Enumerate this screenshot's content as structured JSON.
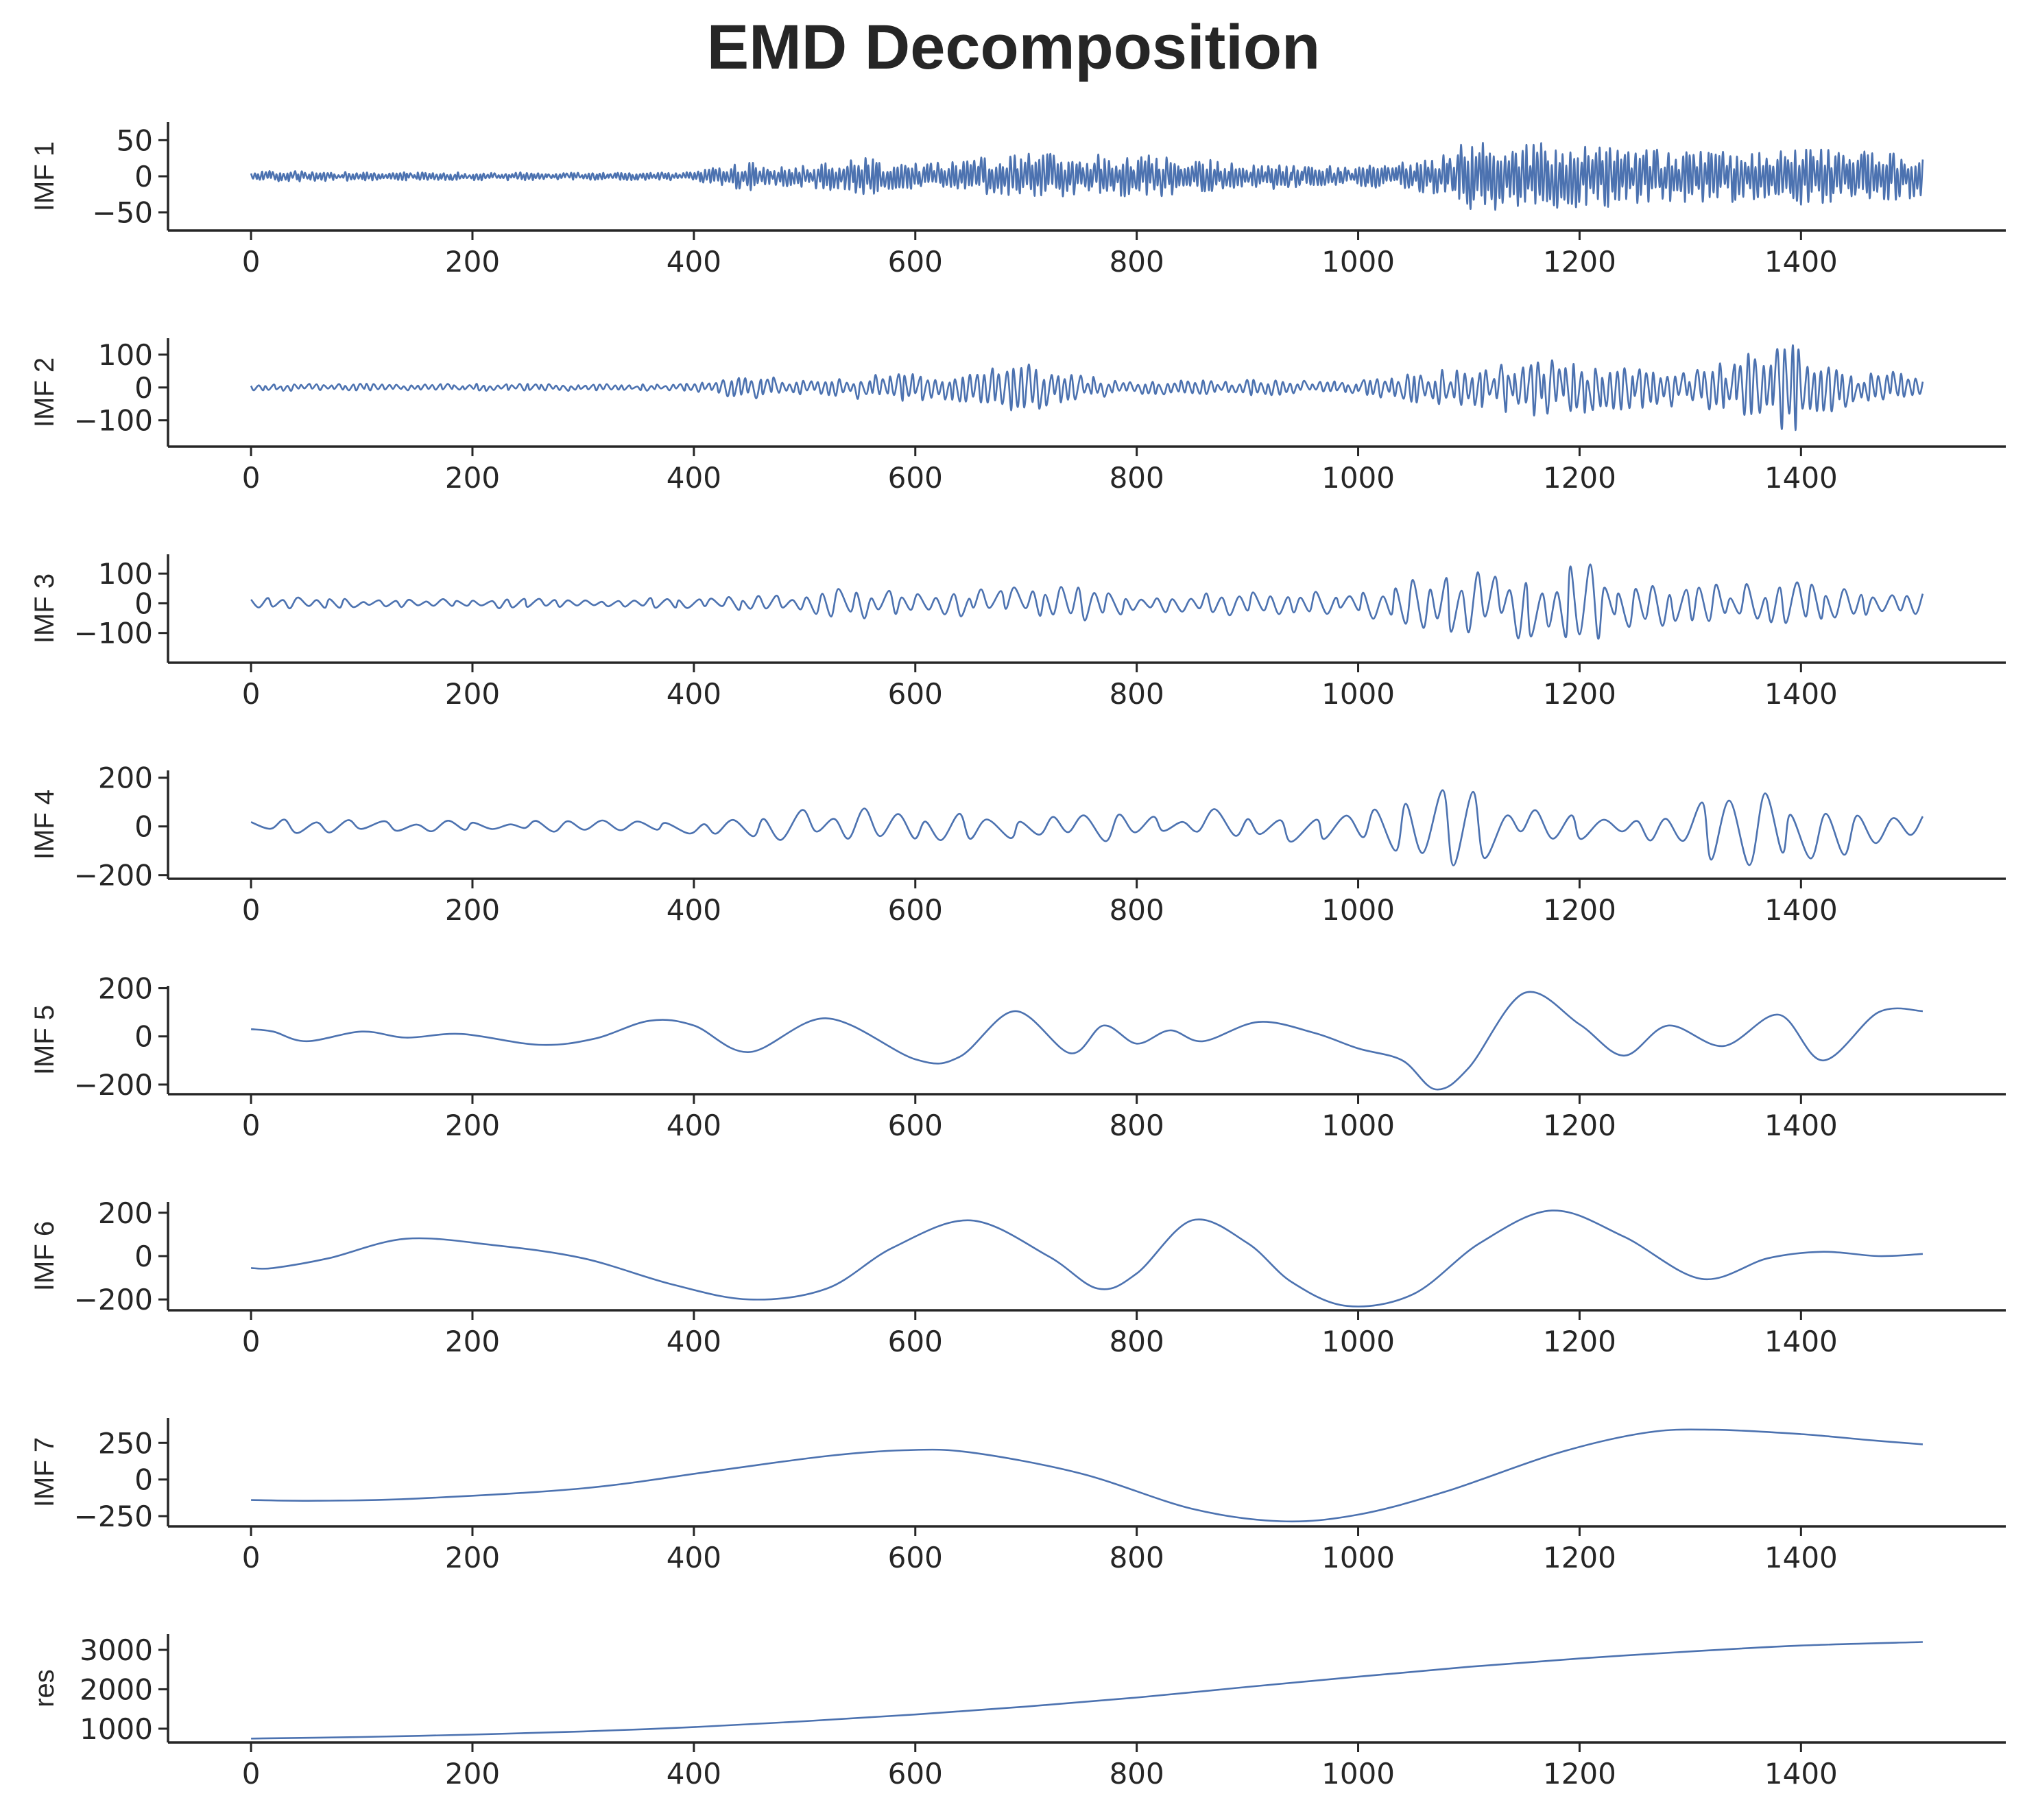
{
  "title": "EMD Decomposition",
  "colors": {
    "line": "#4c72b0",
    "axis": "#262626",
    "background": "#ffffff"
  },
  "chart_data": [
    {
      "type": "line",
      "ylabel": "IMF 1",
      "xlim": [
        -75,
        1585
      ],
      "ylim": [
        -75,
        75
      ],
      "xticks": [
        0,
        200,
        400,
        600,
        800,
        1000,
        1200,
        1400
      ],
      "yticks": [
        50,
        0,
        -50
      ],
      "ytick_labels": [
        "50",
        "0",
        "−50"
      ],
      "series": [
        {
          "x_start": 0,
          "x_end": 1510,
          "kind": "oscillatory",
          "cycles": 460,
          "envelope": [
            [
              0,
              8
            ],
            [
              100,
              6
            ],
            [
              200,
              6
            ],
            [
              300,
              5
            ],
            [
              400,
              6
            ],
            [
              450,
              22
            ],
            [
              470,
              12
            ],
            [
              560,
              26
            ],
            [
              600,
              18
            ],
            [
              700,
              32
            ],
            [
              800,
              30
            ],
            [
              900,
              20
            ],
            [
              1000,
              14
            ],
            [
              1050,
              22
            ],
            [
              1100,
              48
            ],
            [
              1200,
              45
            ],
            [
              1300,
              35
            ],
            [
              1400,
              42
            ],
            [
              1510,
              30
            ]
          ]
        }
      ]
    },
    {
      "type": "line",
      "ylabel": "IMF 2",
      "xlim": [
        -75,
        1585
      ],
      "ylim": [
        -180,
        150
      ],
      "xticks": [
        0,
        200,
        400,
        600,
        800,
        1000,
        1200,
        1400
      ],
      "yticks": [
        100,
        0,
        -100
      ],
      "ytick_labels": [
        "100",
        "0",
        "−100"
      ],
      "series": [
        {
          "x_start": 0,
          "x_end": 1510,
          "kind": "oscillatory",
          "cycles": 230,
          "envelope": [
            [
              0,
              10
            ],
            [
              100,
              12
            ],
            [
              200,
              12
            ],
            [
              300,
              10
            ],
            [
              400,
              12
            ],
            [
              450,
              40
            ],
            [
              500,
              20
            ],
            [
              550,
              40
            ],
            [
              650,
              45
            ],
            [
              700,
              80
            ],
            [
              750,
              40
            ],
            [
              800,
              20
            ],
            [
              900,
              25
            ],
            [
              1000,
              20
            ],
            [
              1050,
              50
            ],
            [
              1100,
              60
            ],
            [
              1150,
              90
            ],
            [
              1200,
              80
            ],
            [
              1300,
              55
            ],
            [
              1395,
              150
            ],
            [
              1450,
              45
            ],
            [
              1510,
              55
            ]
          ]
        }
      ]
    },
    {
      "type": "line",
      "ylabel": "IMF 3",
      "xlim": [
        -75,
        1585
      ],
      "ylim": [
        -200,
        165
      ],
      "xticks": [
        0,
        200,
        400,
        600,
        800,
        1000,
        1200,
        1400
      ],
      "yticks": [
        100,
        0,
        -100
      ],
      "ytick_labels": [
        "100",
        "0",
        "−100"
      ],
      "series": [
        {
          "x_start": 0,
          "x_end": 1510,
          "kind": "oscillatory",
          "cycles": 105,
          "envelope": [
            [
              0,
              25
            ],
            [
              100,
              15
            ],
            [
              200,
              18
            ],
            [
              300,
              15
            ],
            [
              400,
              20
            ],
            [
              500,
              40
            ],
            [
              550,
              65
            ],
            [
              600,
              35
            ],
            [
              700,
              60
            ],
            [
              750,
              70
            ],
            [
              800,
              25
            ],
            [
              900,
              45
            ],
            [
              1000,
              40
            ],
            [
              1050,
              90
            ],
            [
              1150,
              120
            ],
            [
              1200,
              140
            ],
            [
              1300,
              60
            ],
            [
              1400,
              75
            ],
            [
              1510,
              35
            ]
          ]
        }
      ]
    },
    {
      "type": "line",
      "ylabel": "IMF 4",
      "xlim": [
        -75,
        1585
      ],
      "ylim": [
        -215,
        230
      ],
      "xticks": [
        0,
        200,
        400,
        600,
        800,
        1000,
        1200,
        1400
      ],
      "yticks": [
        200,
        0,
        -200
      ],
      "ytick_labels": [
        "200",
        "0",
        "−200"
      ],
      "series": [
        {
          "x_start": 0,
          "x_end": 1510,
          "kind": "oscillatory",
          "cycles": 52,
          "envelope": [
            [
              0,
              35
            ],
            [
              100,
              25
            ],
            [
              200,
              25
            ],
            [
              300,
              25
            ],
            [
              400,
              30
            ],
            [
              450,
              45
            ],
            [
              550,
              100
            ],
            [
              650,
              55
            ],
            [
              750,
              70
            ],
            [
              800,
              50
            ],
            [
              900,
              80
            ],
            [
              1000,
              50
            ],
            [
              1040,
              120
            ],
            [
              1080,
              200
            ],
            [
              1150,
              70
            ],
            [
              1250,
              55
            ],
            [
              1300,
              120
            ],
            [
              1350,
              200
            ],
            [
              1400,
              180
            ],
            [
              1510,
              100
            ]
          ]
        }
      ]
    },
    {
      "type": "line",
      "ylabel": "IMF 5",
      "xlim": [
        -75,
        1585
      ],
      "ylim": [
        -240,
        210
      ],
      "xticks": [
        0,
        200,
        400,
        600,
        800,
        1000,
        1200,
        1400
      ],
      "yticks": [
        200,
        0,
        -200
      ],
      "ytick_labels": [
        "200",
        "0",
        "−200"
      ],
      "series": [
        {
          "name": "",
          "x": [
            0,
            20,
            50,
            100,
            140,
            190,
            260,
            310,
            360,
            400,
            450,
            520,
            600,
            640,
            690,
            740,
            770,
            800,
            830,
            860,
            910,
            960,
            1000,
            1040,
            1070,
            1100,
            1150,
            1200,
            1240,
            1280,
            1330,
            1380,
            1420,
            1470,
            1510
          ],
          "y": [
            30,
            20,
            -20,
            20,
            -5,
            10,
            -35,
            -10,
            65,
            45,
            -65,
            75,
            -95,
            -85,
            105,
            -70,
            45,
            -30,
            25,
            -20,
            60,
            15,
            -50,
            -100,
            -220,
            -130,
            180,
            50,
            -80,
            45,
            -40,
            90,
            -100,
            100,
            105
          ]
        }
      ]
    },
    {
      "type": "line",
      "ylabel": "IMF 6",
      "xlim": [
        -75,
        1585
      ],
      "ylim": [
        -250,
        250
      ],
      "xticks": [
        0,
        200,
        400,
        600,
        800,
        1000,
        1200,
        1400
      ],
      "yticks": [
        200,
        0,
        -200
      ],
      "ytick_labels": [
        "200",
        "0",
        "−200"
      ],
      "series": [
        {
          "name": "",
          "x": [
            0,
            20,
            70,
            140,
            220,
            300,
            380,
            450,
            520,
            580,
            650,
            720,
            765,
            800,
            850,
            900,
            940,
            990,
            1050,
            1110,
            1175,
            1240,
            1310,
            1370,
            1420,
            1470,
            1510
          ],
          "y": [
            -55,
            -55,
            -10,
            80,
            50,
            -10,
            -130,
            -200,
            -150,
            40,
            165,
            0,
            -150,
            -80,
            165,
            60,
            -120,
            -230,
            -175,
            60,
            210,
            90,
            -105,
            -10,
            20,
            0,
            10
          ]
        }
      ]
    },
    {
      "type": "line",
      "ylabel": "IMF 7",
      "xlim": [
        -75,
        1585
      ],
      "ylim": [
        -320,
        420
      ],
      "xticks": [
        0,
        200,
        400,
        600,
        800,
        1000,
        1200,
        1400
      ],
      "yticks": [
        250,
        0,
        -250
      ],
      "ytick_labels": [
        "250",
        "0",
        "−250"
      ],
      "series": [
        {
          "name": "",
          "x": [
            0,
            60,
            150,
            300,
            420,
            520,
            590,
            650,
            750,
            850,
            930,
            1000,
            1080,
            1180,
            1260,
            1320,
            1400,
            1460,
            1510
          ],
          "y": [
            -140,
            -145,
            -130,
            -60,
            60,
            160,
            200,
            185,
            40,
            -200,
            -285,
            -240,
            -80,
            180,
            320,
            340,
            310,
            270,
            240
          ]
        }
      ]
    },
    {
      "type": "line",
      "ylabel": "res",
      "xlim": [
        -75,
        1585
      ],
      "ylim": [
        650,
        3400
      ],
      "xticks": [
        0,
        200,
        400,
        600,
        800,
        1000,
        1200,
        1400
      ],
      "yticks": [
        3000,
        2000,
        1000
      ],
      "ytick_labels": [
        "3000",
        "2000",
        "1000"
      ],
      "series": [
        {
          "name": "",
          "x": [
            0,
            100,
            200,
            300,
            400,
            500,
            600,
            700,
            800,
            900,
            1000,
            1100,
            1200,
            1300,
            1400,
            1510
          ],
          "y": [
            750,
            790,
            850,
            930,
            1040,
            1190,
            1360,
            1560,
            1790,
            2060,
            2320,
            2570,
            2780,
            2960,
            3110,
            3200
          ]
        }
      ]
    }
  ]
}
